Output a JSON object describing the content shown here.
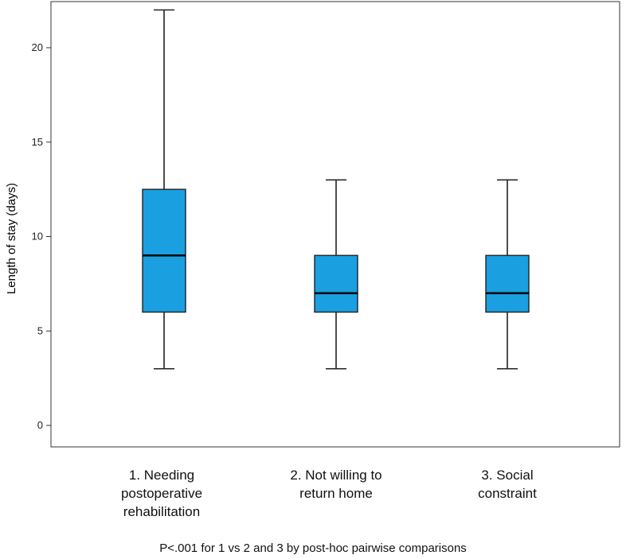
{
  "chart_data": {
    "type": "box",
    "title": "",
    "xlabel": "",
    "ylabel": "Length of stay (days)",
    "ylim": [
      -1,
      22.5
    ],
    "yticks": [
      0,
      5,
      10,
      15,
      20
    ],
    "box_color": "#1a9fe0",
    "categories": [
      "1. Needing\npostoperative\nrehabilitation",
      "2. Not willing to\nreturn home",
      "3. Social\nconstraint"
    ],
    "boxes": [
      {
        "min": 3,
        "q1": 6,
        "median": 9,
        "q3": 12.5,
        "max": 22
      },
      {
        "min": 3,
        "q1": 6,
        "median": 7,
        "q3": 9,
        "max": 13
      },
      {
        "min": 3,
        "q1": 6,
        "median": 7,
        "q3": 9,
        "max": 13
      }
    ],
    "annotation": "P<.001 for 1 vs 2 and 3 by post-hoc pairwise comparisons"
  }
}
